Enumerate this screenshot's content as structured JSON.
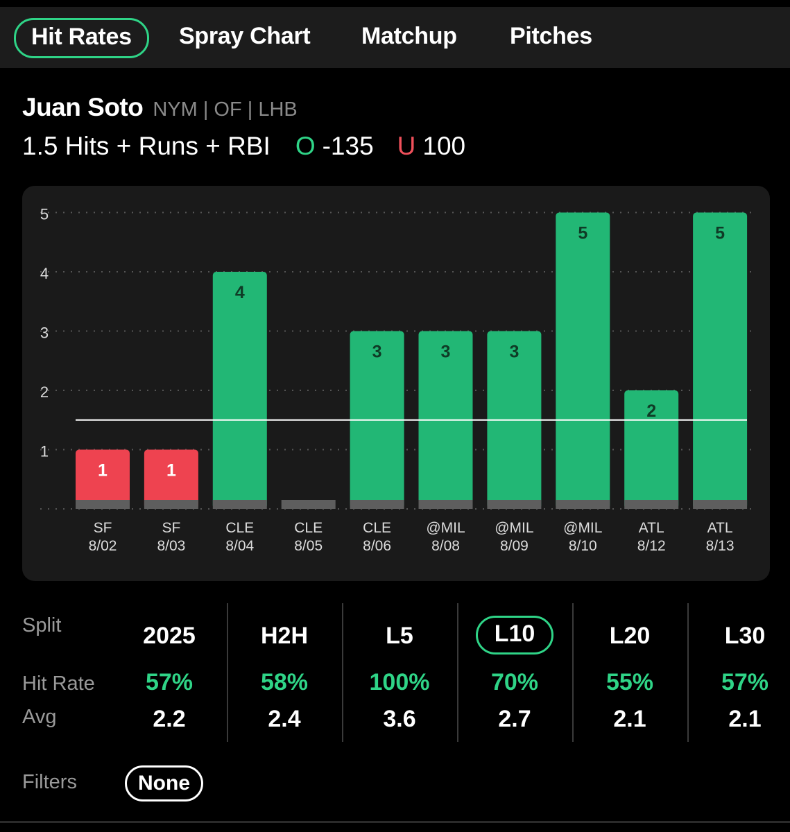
{
  "tabs": [
    {
      "label": "Hit Rates",
      "active": true
    },
    {
      "label": "Spray Chart",
      "active": false
    },
    {
      "label": "Matchup",
      "active": false
    },
    {
      "label": "Pitches",
      "active": false
    }
  ],
  "player": {
    "name": "Juan Soto",
    "meta": "NYM | OF | LHB"
  },
  "prop": {
    "line_label": "1.5 Hits + Runs + RBI",
    "over_letter": "O",
    "over_odds": "-135",
    "under_letter": "U",
    "under_odds": "100"
  },
  "colors": {
    "over": "#2fd487",
    "under": "#f0505b",
    "bar_hit": "#22b775",
    "bar_miss": "#ee4350",
    "base": "#5e5e5e"
  },
  "chart_data": {
    "type": "bar",
    "categories": [
      {
        "team": "SF",
        "date": "8/02"
      },
      {
        "team": "SF",
        "date": "8/03"
      },
      {
        "team": "CLE",
        "date": "8/04"
      },
      {
        "team": "CLE",
        "date": "8/05"
      },
      {
        "team": "CLE",
        "date": "8/06"
      },
      {
        "team": "@MIL",
        "date": "8/08"
      },
      {
        "team": "@MIL",
        "date": "8/09"
      },
      {
        "team": "@MIL",
        "date": "8/10"
      },
      {
        "team": "ATL",
        "date": "8/12"
      },
      {
        "team": "ATL",
        "date": "8/13"
      }
    ],
    "values": [
      1,
      1,
      4,
      0,
      3,
      3,
      3,
      5,
      2,
      5
    ],
    "line": 1.5,
    "yticks": [
      "1",
      "2",
      "3",
      "4",
      "5"
    ],
    "ylim": [
      0,
      5
    ],
    "grid": true
  },
  "splits": {
    "labels": {
      "split": "Split",
      "hit_rate": "Hit Rate",
      "avg": "Avg"
    },
    "columns": [
      {
        "name": "2025",
        "hit_rate": "57%",
        "avg": "2.2",
        "active": false
      },
      {
        "name": "H2H",
        "hit_rate": "58%",
        "avg": "2.4",
        "active": false
      },
      {
        "name": "L5",
        "hit_rate": "100%",
        "avg": "3.6",
        "active": false
      },
      {
        "name": "L10",
        "hit_rate": "70%",
        "avg": "2.7",
        "active": true
      },
      {
        "name": "L20",
        "hit_rate": "55%",
        "avg": "2.1",
        "active": false
      },
      {
        "name": "L30",
        "hit_rate": "57%",
        "avg": "2.1",
        "active": false
      }
    ]
  },
  "filters": {
    "label": "Filters",
    "value": "None"
  }
}
